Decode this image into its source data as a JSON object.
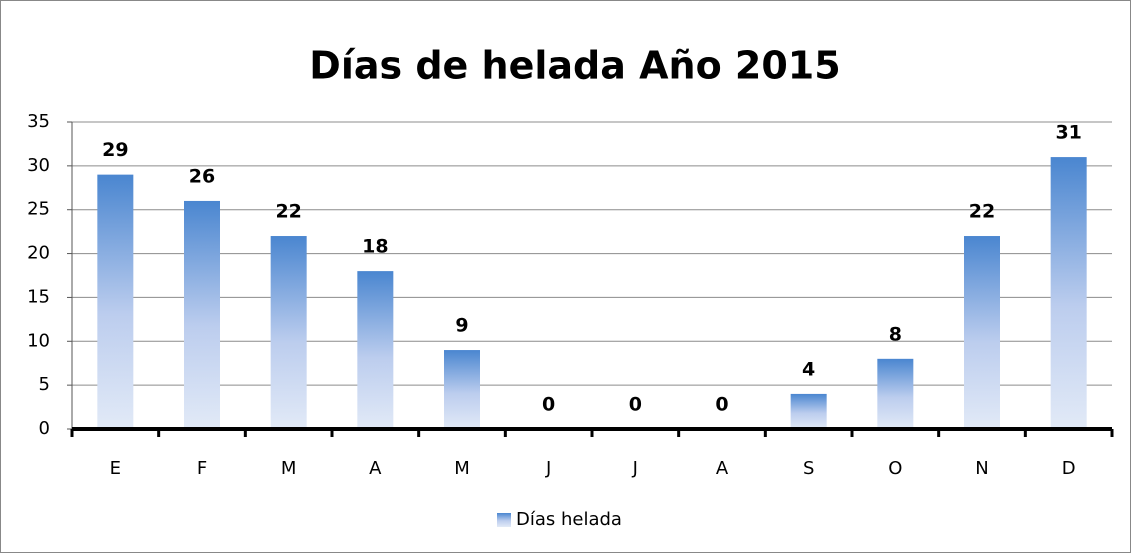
{
  "chart_data": {
    "type": "bar",
    "title": "Días de helada Año 2015",
    "categories": [
      "E",
      "F",
      "M",
      "A",
      "M",
      "J",
      "J",
      "A",
      "S",
      "O",
      "N",
      "D"
    ],
    "series": [
      {
        "name": "Días helada",
        "color": "#4a86d0",
        "values": [
          29,
          26,
          22,
          18,
          9,
          0,
          0,
          0,
          4,
          8,
          22,
          31
        ]
      }
    ],
    "ylim": [
      0,
      35
    ],
    "yticks": [
      0,
      5,
      10,
      15,
      20,
      25,
      30,
      35
    ],
    "grid": true,
    "legend": "bottom"
  }
}
